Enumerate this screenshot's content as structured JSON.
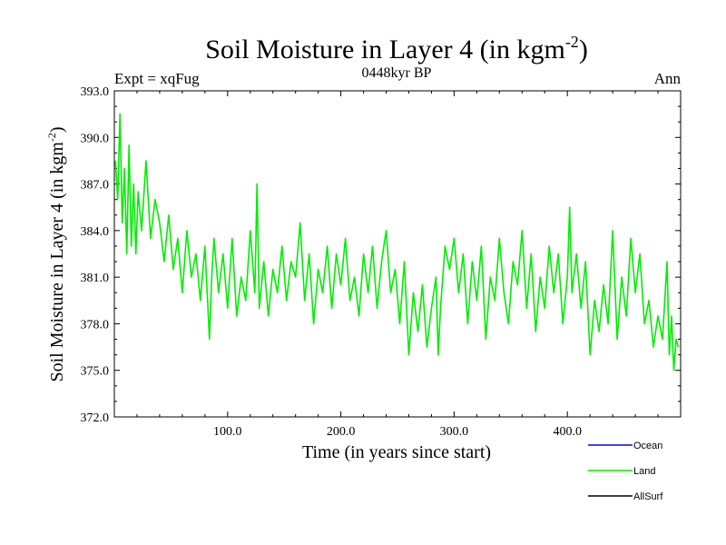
{
  "chart_data": {
    "type": "line",
    "title": "Soil Moisture in Layer 4 (in kgm",
    "title_superscript": "-2",
    "title_suffix": ")",
    "subtitle": "0448kyr BP",
    "left_note": "Expt = xqFug",
    "right_note": "Ann",
    "xlabel": "Time (in years since start)",
    "ylabel": "Soil Moisture in Layer 4 (in kgm",
    "ylabel_superscript": "-2",
    "ylabel_suffix": ")",
    "xlim": [
      0,
      500
    ],
    "ylim": [
      372.0,
      393.0
    ],
    "x_ticks": [
      100,
      200,
      300,
      400
    ],
    "x_tick_labels": [
      "100.0",
      "200.0",
      "300.0",
      "400.0"
    ],
    "y_ticks": [
      372,
      375,
      378,
      381,
      384,
      387,
      390,
      393
    ],
    "y_tick_labels": [
      "372.0",
      "375.0",
      "378.0",
      "381.0",
      "384.0",
      "387.0",
      "390.0",
      "393.0"
    ],
    "series": [
      {
        "name": "Land",
        "color": "#00ee00",
        "x": [
          1,
          3,
          5,
          7,
          9,
          11,
          13,
          15,
          17,
          19,
          21,
          24,
          28,
          32,
          36,
          40,
          44,
          48,
          52,
          56,
          60,
          64,
          68,
          72,
          76,
          80,
          84,
          86,
          88,
          92,
          96,
          100,
          104,
          108,
          112,
          116,
          120,
          124,
          126,
          128,
          132,
          136,
          140,
          144,
          148,
          152,
          156,
          160,
          164,
          168,
          172,
          176,
          180,
          184,
          188,
          192,
          196,
          200,
          204,
          208,
          212,
          216,
          220,
          224,
          228,
          232,
          236,
          240,
          244,
          248,
          252,
          256,
          260,
          264,
          268,
          272,
          276,
          280,
          284,
          286,
          288,
          292,
          296,
          300,
          304,
          308,
          312,
          316,
          320,
          324,
          328,
          332,
          336,
          340,
          344,
          348,
          352,
          356,
          360,
          364,
          368,
          372,
          376,
          380,
          384,
          388,
          392,
          396,
          400,
          402,
          404,
          408,
          412,
          416,
          420,
          424,
          428,
          432,
          436,
          440,
          444,
          448,
          452,
          456,
          460,
          464,
          468,
          472,
          476,
          480,
          484,
          488,
          490,
          492,
          494,
          496,
          498
        ],
        "values": [
          388.5,
          386.0,
          391.5,
          384.5,
          388.0,
          382.5,
          389.5,
          383.0,
          387.0,
          382.5,
          386.5,
          384.0,
          388.5,
          383.5,
          386.0,
          384.5,
          382.0,
          385.0,
          381.5,
          383.5,
          380.0,
          384.0,
          381.0,
          382.5,
          379.5,
          383.0,
          377.0,
          381.0,
          383.5,
          380.0,
          382.5,
          379.0,
          383.5,
          378.5,
          381.0,
          379.5,
          384.0,
          380.0,
          387.0,
          379.0,
          382.0,
          378.5,
          381.5,
          380.0,
          383.0,
          379.5,
          382.0,
          381.0,
          384.5,
          379.5,
          382.5,
          378.0,
          381.5,
          380.0,
          383.0,
          379.0,
          382.5,
          380.5,
          383.5,
          379.5,
          381.0,
          378.5,
          382.5,
          380.0,
          383.0,
          379.0,
          382.0,
          384.0,
          380.0,
          381.5,
          378.0,
          382.0,
          376.0,
          380.0,
          377.5,
          380.5,
          376.5,
          379.0,
          381.0,
          376.0,
          379.0,
          383.0,
          381.5,
          383.5,
          380.0,
          382.5,
          378.0,
          382.0,
          379.5,
          383.0,
          377.0,
          381.0,
          379.5,
          383.5,
          380.0,
          378.0,
          382.0,
          380.5,
          384.0,
          379.0,
          382.5,
          377.5,
          381.0,
          379.0,
          383.0,
          380.0,
          382.5,
          378.0,
          381.0,
          385.5,
          380.0,
          382.5,
          379.0,
          382.0,
          376.0,
          379.5,
          377.5,
          380.5,
          378.0,
          384.0,
          377.0,
          381.0,
          378.5,
          383.5,
          380.0,
          382.5,
          378.0,
          379.5,
          376.5,
          378.5,
          377.0,
          382.0,
          376.0,
          378.5,
          375.0,
          377.0,
          376.5
        ]
      }
    ],
    "legend": [
      {
        "label": "Ocean",
        "color": "#0000ff"
      },
      {
        "label": "Land",
        "color": "#00ee00"
      },
      {
        "label": "AllSurf",
        "color": "#000000"
      }
    ]
  }
}
